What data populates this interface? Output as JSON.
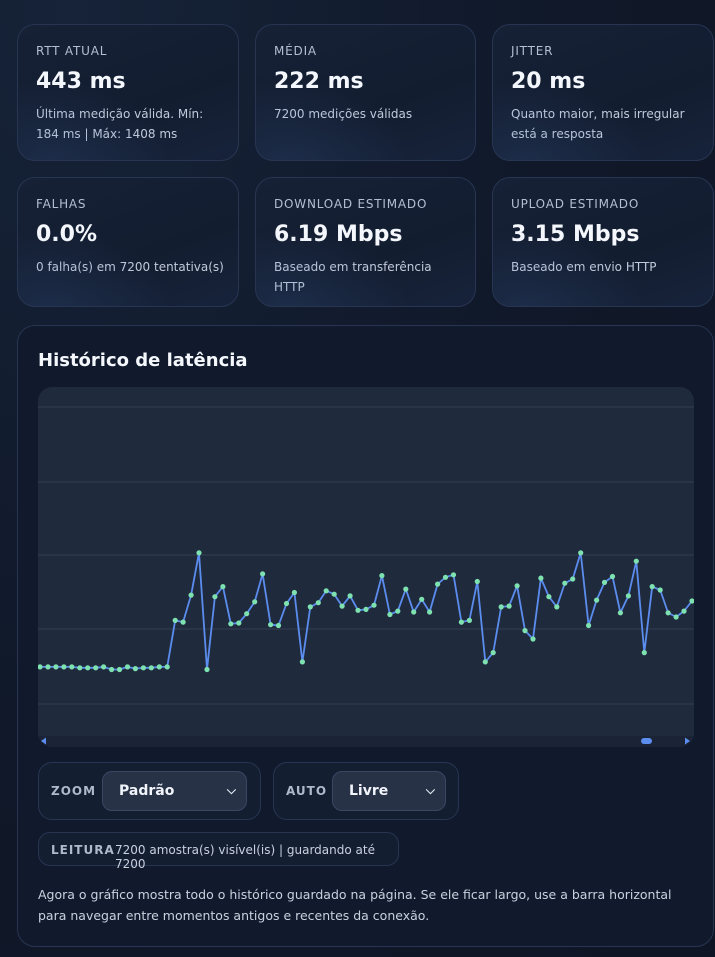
{
  "stats": [
    {
      "label": "RTT ATUAL",
      "value": "443 ms",
      "sub": "Última medição válida. Mín: 184 ms | Máx: 1408 ms"
    },
    {
      "label": "MÉDIA",
      "value": "222 ms",
      "sub": "7200 medições válidas"
    },
    {
      "label": "JITTER",
      "value": "20 ms",
      "sub": "Quanto maior, mais irregular está a resposta"
    },
    {
      "label": "FALHAS",
      "value": "0.0%",
      "sub": "0 falha(s) em 7200 tentativa(s)"
    },
    {
      "label": "DOWNLOAD ESTIMADO",
      "value": "6.19 Mbps",
      "sub": "Baseado em transferência HTTP"
    },
    {
      "label": "UPLOAD ESTIMADO",
      "value": "3.15 Mbps",
      "sub": "Baseado em envio HTTP"
    }
  ],
  "history": {
    "title": "Histórico de latência",
    "zoom_label": "ZOOM",
    "zoom_value": "Padrão",
    "auto_label": "AUTO",
    "auto_value": "Livre",
    "reading_label": "LEITURA",
    "reading_value": "7200 amostra(s) visível(is) | guardando até 7200",
    "footnote": "Agora o gráfico mostra todo o histórico guardado na página. Se ele ficar largo, use a barra horizontal para navegar entre momentos antigos e recentes da conexão."
  },
  "colors": {
    "line": "#5b8def",
    "point": "#7ee2b0",
    "grid": "#323d55",
    "scroll_thumb": "#5b8def"
  },
  "chart_data": {
    "type": "line",
    "title": "",
    "xlabel": "",
    "ylabel": "",
    "grid": true,
    "ylim": [
      0,
      350
    ],
    "values": [
      45,
      45,
      45,
      45,
      45,
      44,
      44,
      44,
      45,
      42,
      42,
      45,
      43,
      44,
      44,
      45,
      45,
      100,
      98,
      130,
      180,
      42,
      128,
      140,
      96,
      97,
      108,
      122,
      155,
      95,
      94,
      120,
      133,
      51,
      116,
      121,
      135,
      131,
      117,
      129,
      112,
      113,
      118,
      153,
      107,
      111,
      137,
      110,
      125,
      110,
      143,
      151,
      154,
      98,
      100,
      146,
      51,
      62,
      116,
      117,
      141,
      88,
      78,
      150,
      128,
      116,
      144,
      149,
      180,
      94,
      124,
      145,
      152,
      109,
      129,
      170,
      62,
      140,
      136,
      109,
      104,
      111,
      123
    ]
  }
}
